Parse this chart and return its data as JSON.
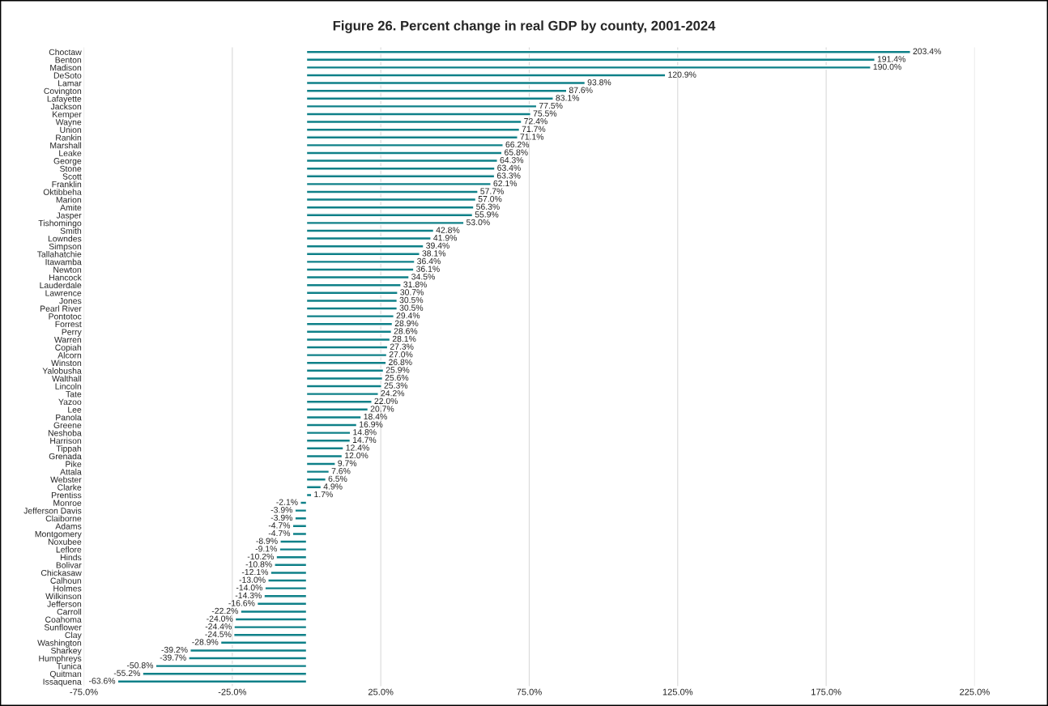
{
  "chart_data": {
    "type": "bar",
    "orientation": "horizontal",
    "title": "Figure 26. Percent change in real GDP by county, 2001-2024",
    "categories": [
      "Choctaw",
      "Benton",
      "Madison",
      "DeSoto",
      "Lamar",
      "Covington",
      "Lafayette",
      "Jackson",
      "Kemper",
      "Wayne",
      "Union",
      "Rankin",
      "Marshall",
      "Leake",
      "George",
      "Stone",
      "Scott",
      "Franklin",
      "Oktibbeha",
      "Marion",
      "Amite",
      "Jasper",
      "Tishomingo",
      "Smith",
      "Lowndes",
      "Simpson",
      "Tallahatchie",
      "Itawamba",
      "Newton",
      "Hancock",
      "Lauderdale",
      "Lawrence",
      "Jones",
      "Pearl River",
      "Pontotoc",
      "Forrest",
      "Perry",
      "Warren",
      "Copiah",
      "Alcorn",
      "Winston",
      "Yalobusha",
      "Walthall",
      "Lincoln",
      "Tate",
      "Yazoo",
      "Lee",
      "Panola",
      "Greene",
      "Neshoba",
      "Harrison",
      "Tippah",
      "Grenada",
      "Pike",
      "Attala",
      "Webster",
      "Clarke",
      "Prentiss",
      "Monroe",
      "Jefferson Davis",
      "Claiborne",
      "Adams",
      "Montgomery",
      "Noxubee",
      "Leflore",
      "Hinds",
      "Bolivar",
      "Chickasaw",
      "Calhoun",
      "Holmes",
      "Wilkinson",
      "Jefferson",
      "Carroll",
      "Coahoma",
      "Sunflower",
      "Clay",
      "Washington",
      "Sharkey",
      "Humphreys",
      "Tunica",
      "Quitman",
      "Issaquena"
    ],
    "values": [
      203.4,
      191.4,
      190.0,
      120.9,
      93.8,
      87.6,
      83.1,
      77.5,
      75.5,
      72.4,
      71.7,
      71.1,
      66.2,
      65.8,
      64.3,
      63.4,
      63.3,
      62.1,
      57.7,
      57.0,
      56.3,
      55.9,
      53.0,
      42.8,
      41.9,
      39.4,
      38.1,
      36.4,
      36.1,
      34.5,
      31.8,
      30.7,
      30.5,
      30.5,
      29.4,
      28.9,
      28.6,
      28.1,
      27.3,
      27.0,
      26.8,
      25.9,
      25.6,
      25.3,
      24.2,
      22.0,
      20.7,
      18.4,
      16.9,
      14.8,
      14.7,
      12.4,
      12.0,
      9.7,
      7.6,
      6.5,
      4.9,
      1.7,
      -2.1,
      -3.9,
      -3.9,
      -4.7,
      -4.7,
      -8.9,
      -9.1,
      -10.2,
      -10.8,
      -12.1,
      -13.0,
      -14.0,
      -14.3,
      -16.6,
      -22.2,
      -24.0,
      -24.4,
      -24.5,
      -28.9,
      -39.2,
      -39.7,
      -50.8,
      -55.2,
      -63.6
    ],
    "value_labels": [
      "203.4%",
      "191.4%",
      "190.0%",
      "120.9%",
      "93.8%",
      "87.6%",
      "83.1%",
      "77.5%",
      "75.5%",
      "72.4%",
      "71.7%",
      "71.1%",
      "66.2%",
      "65.8%",
      "64.3%",
      "63.4%",
      "63.3%",
      "62.1%",
      "57.7%",
      "57.0%",
      "56.3%",
      "55.9%",
      "53.0%",
      "42.8%",
      "41.9%",
      "39.4%",
      "38.1%",
      "36.4%",
      "36.1%",
      "34.5%",
      "31.8%",
      "30.7%",
      "30.5%",
      "30.5%",
      "29.4%",
      "28.9%",
      "28.6%",
      "28.1%",
      "27.3%",
      "27.0%",
      "26.8%",
      "25.9%",
      "25.6%",
      "25.3%",
      "24.2%",
      "22.0%",
      "20.7%",
      "18.4%",
      "16.9%",
      "14.8%",
      "14.7%",
      "12.4%",
      "12.0%",
      "9.7%",
      "7.6%",
      "6.5%",
      "4.9%",
      "1.7%",
      "-2.1%",
      "-3.9%",
      "-3.9%",
      "-4.7%",
      "-4.7%",
      "-8.9%",
      "-9.1%",
      "-10.2%",
      "-10.8%",
      "-12.1%",
      "-13.0%",
      "-14.0%",
      "-14.3%",
      "-16.6%",
      "-22.2%",
      "-24.0%",
      "-24.4%",
      "-24.5%",
      "-28.9%",
      "-39.2%",
      "-39.7%",
      "-50.8%",
      "-55.2%",
      "-63.6%"
    ],
    "color": "#0e8088",
    "xlim": [
      -75,
      225
    ],
    "xticks": [
      {
        "value": -75,
        "label": "-75.0%"
      },
      {
        "value": -25,
        "label": "-25.0%"
      },
      {
        "value": 25,
        "label": "25.0%"
      },
      {
        "value": 75,
        "label": "75.0%"
      },
      {
        "value": 125,
        "label": "125.0%"
      },
      {
        "value": 175,
        "label": "175.0%"
      },
      {
        "value": 225,
        "label": "225.0%"
      }
    ],
    "grid": "x",
    "legend": false
  }
}
